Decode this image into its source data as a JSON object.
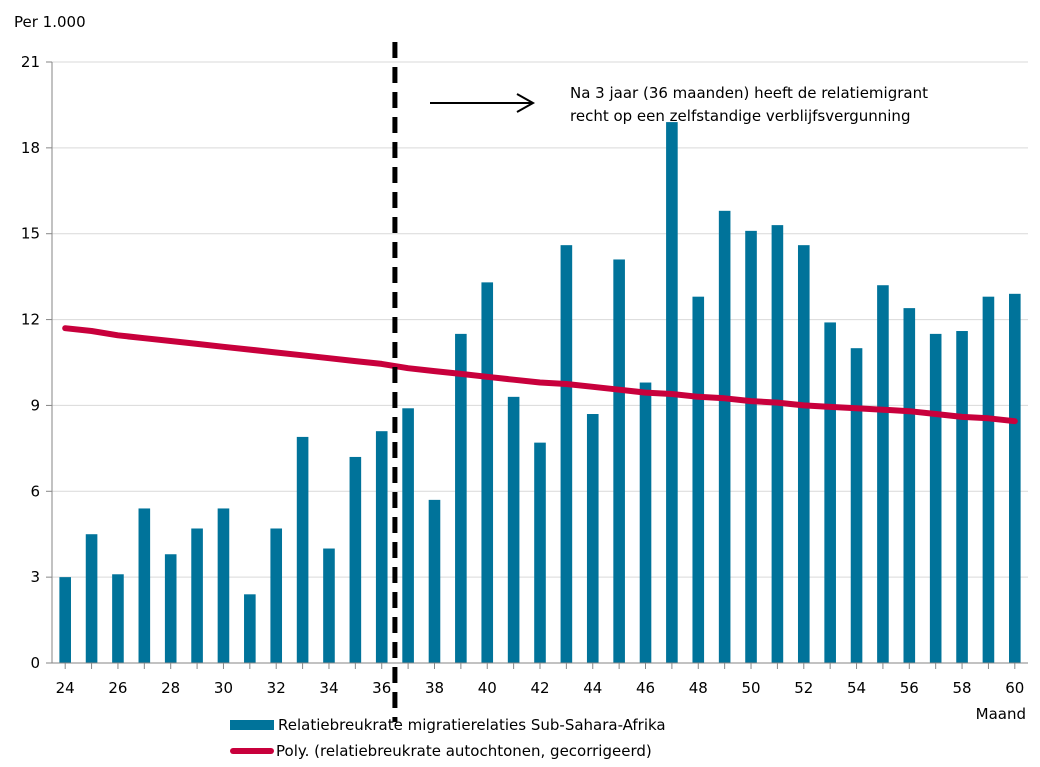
{
  "chart_data": {
    "type": "bar",
    "y_unit_label": "Per 1.000",
    "xlabel": "Maand",
    "ylim": [
      0,
      21
    ],
    "yticks": [
      0,
      3,
      6,
      9,
      12,
      15,
      18,
      21
    ],
    "xlim": [
      24,
      60
    ],
    "xticks": [
      24,
      26,
      28,
      30,
      32,
      34,
      36,
      38,
      40,
      42,
      44,
      46,
      48,
      50,
      52,
      54,
      56,
      58,
      60
    ],
    "grid": "horizontal",
    "series": [
      {
        "name": "Relatiebreukrate migratierelaties Sub-Sahara-Afrika",
        "type": "bar",
        "color": "#00739a",
        "x": [
          24,
          25,
          26,
          27,
          28,
          29,
          30,
          31,
          32,
          33,
          34,
          35,
          36,
          37,
          38,
          39,
          40,
          41,
          42,
          43,
          44,
          45,
          46,
          47,
          48,
          49,
          50,
          51,
          52,
          53,
          54,
          55,
          56,
          57,
          58,
          59,
          60
        ],
        "values": [
          3.0,
          4.5,
          3.1,
          5.4,
          3.8,
          4.7,
          5.4,
          2.4,
          4.7,
          7.9,
          4.0,
          7.2,
          8.1,
          8.9,
          5.7,
          11.5,
          13.3,
          9.3,
          7.7,
          14.6,
          8.7,
          14.1,
          9.8,
          18.9,
          12.8,
          15.8,
          15.1,
          15.3,
          14.6,
          11.9,
          11.0,
          13.2,
          12.4,
          11.5,
          11.6,
          12.8,
          12.9
        ]
      },
      {
        "name": "Poly. (relatiebreukrate autochtonen, gecorrigeerd)",
        "type": "line",
        "color": "#c8003c",
        "x": [
          24,
          25,
          26,
          27,
          28,
          29,
          30,
          31,
          32,
          33,
          34,
          35,
          36,
          37,
          38,
          39,
          40,
          41,
          42,
          43,
          44,
          45,
          46,
          47,
          48,
          49,
          50,
          51,
          52,
          53,
          54,
          55,
          56,
          57,
          58,
          59,
          60
        ],
        "values": [
          11.7,
          11.6,
          11.45,
          11.35,
          11.25,
          11.15,
          11.05,
          10.95,
          10.85,
          10.75,
          10.65,
          10.55,
          10.45,
          10.3,
          10.2,
          10.1,
          10.0,
          9.9,
          9.8,
          9.75,
          9.65,
          9.55,
          9.45,
          9.4,
          9.3,
          9.25,
          9.15,
          9.1,
          9.0,
          8.95,
          8.9,
          8.85,
          8.8,
          8.7,
          8.6,
          8.55,
          8.45
        ]
      }
    ],
    "marker_x": 36.5,
    "annotation": {
      "line1": "Na 3 jaar (36 maanden) heeft de relatiemigrant",
      "line2": "recht op een zelfstandige verblijfsvergunning"
    }
  }
}
